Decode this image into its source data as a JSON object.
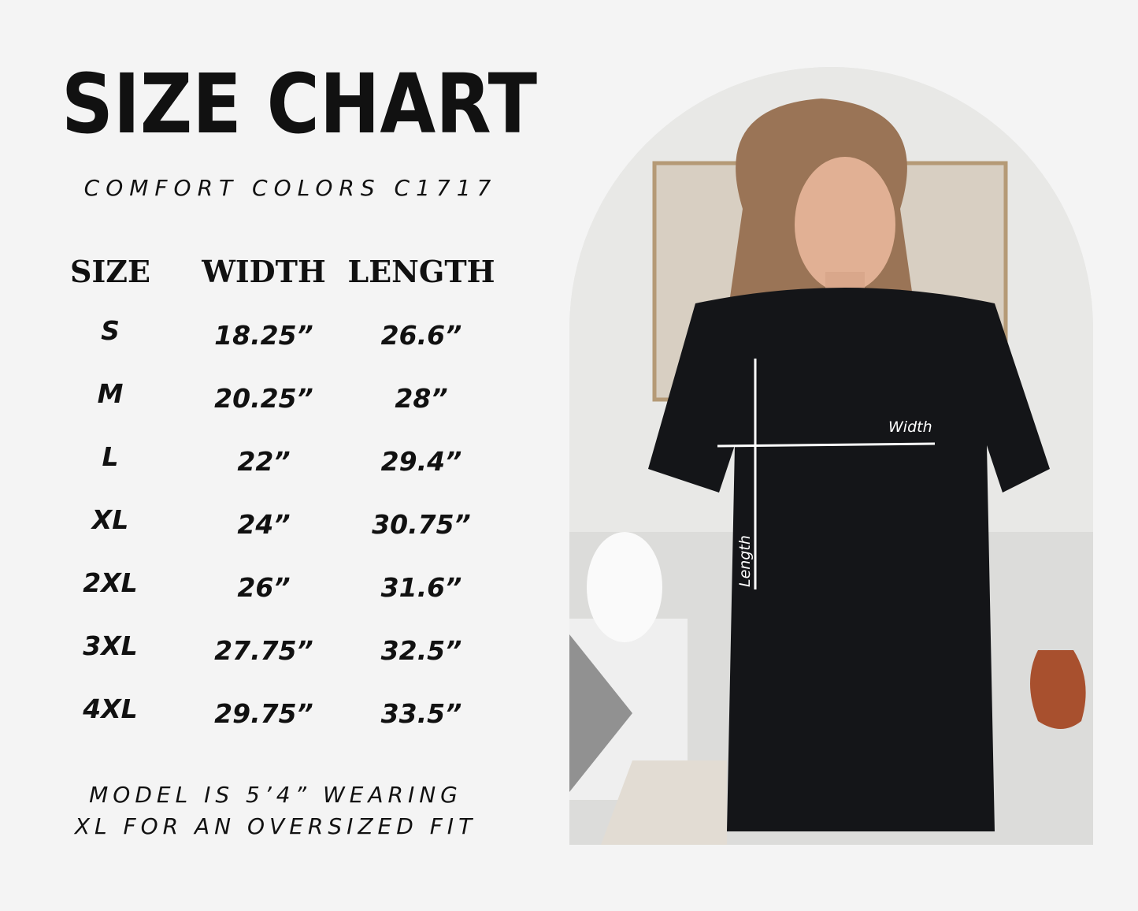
{
  "header": {
    "title": "SIZE CHART",
    "subtitle": "COMFORT COLORS C1717"
  },
  "table": {
    "columns": [
      "SIZE",
      "WIDTH",
      "LENGTH"
    ],
    "rows": [
      {
        "size": "S",
        "width": "18.25”",
        "length": "26.6”"
      },
      {
        "size": "M",
        "width": "20.25”",
        "length": "28”"
      },
      {
        "size": "L",
        "width": "22”",
        "length": "29.4”"
      },
      {
        "size": "XL",
        "width": "24”",
        "length": "30.75”"
      },
      {
        "size": "2XL",
        "width": "26”",
        "length": "31.6”"
      },
      {
        "size": "3XL",
        "width": "27.75”",
        "length": "32.5”"
      },
      {
        "size": "4XL",
        "width": "29.75”",
        "length": "33.5”"
      }
    ]
  },
  "note": {
    "line1": "MODEL IS 5’4” WEARING",
    "line2": "XL FOR AN OVERSIZED FIT"
  },
  "photo": {
    "width_label": "Width",
    "length_label": "Length",
    "shirt_color": "#141518"
  }
}
